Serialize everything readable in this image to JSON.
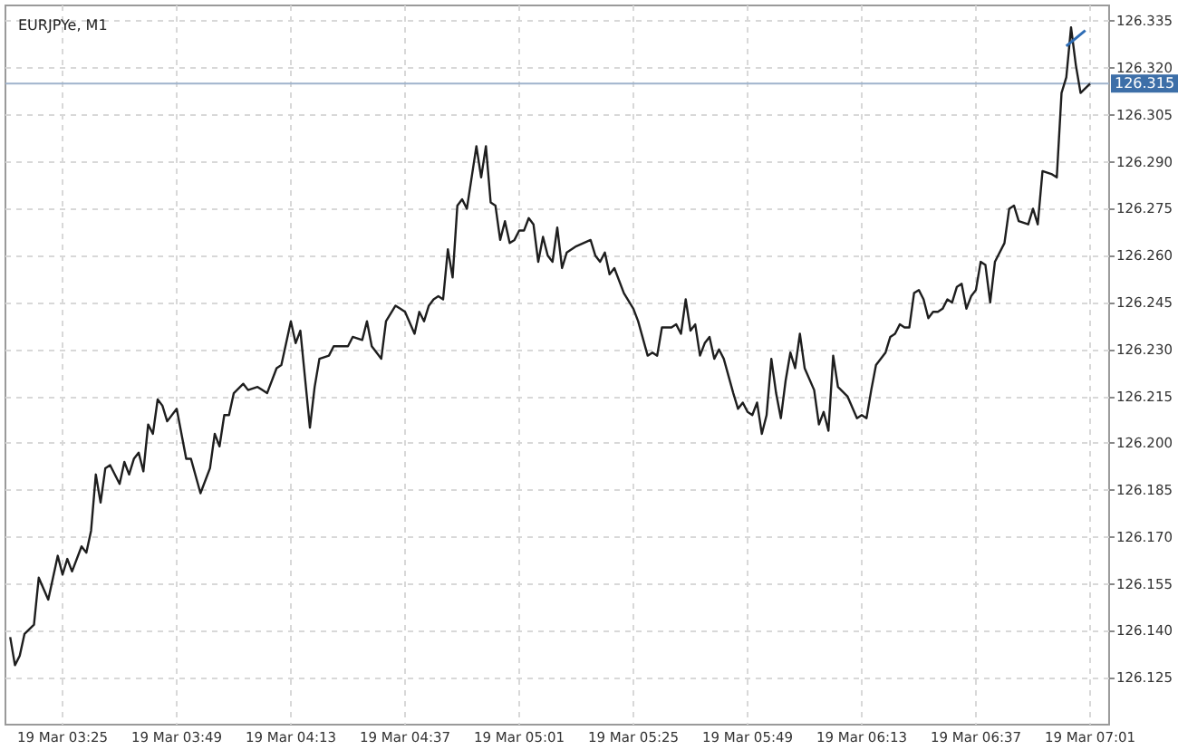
{
  "chart_data": {
    "type": "line",
    "title": "EURJPYe, M1",
    "xlim": [
      "--03-19T03:13",
      "--03-19T07:05"
    ],
    "xticks": [
      {
        "value": "--03-19T03:25",
        "label": "19 Mar 03:25"
      },
      {
        "value": "--03-19T03:49",
        "label": "19 Mar 03:49"
      },
      {
        "value": "--03-19T04:13",
        "label": "19 Mar 04:13"
      },
      {
        "value": "--03-19T04:37",
        "label": "19 Mar 04:37"
      },
      {
        "value": "--03-19T05:01",
        "label": "19 Mar 05:01"
      },
      {
        "value": "--03-19T05:25",
        "label": "19 Mar 05:25"
      },
      {
        "value": "--03-19T05:49",
        "label": "19 Mar 05:49"
      },
      {
        "value": "--03-19T06:13",
        "label": "19 Mar 06:13"
      },
      {
        "value": "--03-19T06:37",
        "label": "19 Mar 06:37"
      },
      {
        "value": "--03-19T07:01",
        "label": "19 Mar 07:01"
      }
    ],
    "ylim": [
      126.11,
      126.34
    ],
    "yticks": [
      126.125,
      {
        "value": 126.14,
        "label": "126.140"
      },
      126.155,
      {
        "value": 126.17,
        "label": "126.170"
      },
      126.185,
      {
        "value": 126.2,
        "label": "126.200"
      },
      126.215,
      {
        "value": 126.23,
        "label": "126.230"
      },
      126.245,
      {
        "value": 126.26,
        "label": "126.260"
      },
      126.275,
      {
        "value": 126.29,
        "label": "126.290"
      },
      126.305,
      {
        "value": 126.32,
        "label": "126.320"
      },
      126.335
    ],
    "grid": true,
    "marker": "none",
    "line_style": "solid",
    "ref_lines": [
      {
        "axis": "y",
        "value": 126.315,
        "label": "126.315",
        "color": "#9fb3cc"
      }
    ],
    "series": [
      {
        "color": "#1e1e1e",
        "x": [
          "--03-19T03:14",
          "--03-19T03:15",
          "--03-19T03:16",
          "--03-19T03:17",
          "--03-19T03:19",
          "--03-19T03:20",
          "--03-19T03:22",
          "--03-19T03:24",
          "--03-19T03:25",
          "--03-19T03:26",
          "--03-19T03:27",
          "--03-19T03:29",
          "--03-19T03:30",
          "--03-19T03:31",
          "--03-19T03:32",
          "--03-19T03:33",
          "--03-19T03:34",
          "--03-19T03:35",
          "--03-19T03:37",
          "--03-19T03:38",
          "--03-19T03:39",
          "--03-19T03:40",
          "--03-19T03:41",
          "--03-19T03:42",
          "--03-19T03:43",
          "--03-19T03:44",
          "--03-19T03:45",
          "--03-19T03:46",
          "--03-19T03:47",
          "--03-19T03:49",
          "--03-19T03:51",
          "--03-19T03:52",
          "--03-19T03:54",
          "--03-19T03:56",
          "--03-19T03:57",
          "--03-19T03:58",
          "--03-19T03:59",
          "--03-19T04:00",
          "--03-19T04:01",
          "--03-19T04:03",
          "--03-19T04:04",
          "--03-19T04:06",
          "--03-19T04:07",
          "--03-19T04:08",
          "--03-19T04:10",
          "--03-19T04:11",
          "--03-19T04:13",
          "--03-19T04:14",
          "--03-19T04:15",
          "--03-19T04:17",
          "--03-19T04:18",
          "--03-19T04:19",
          "--03-19T04:21",
          "--03-19T04:22",
          "--03-19T04:23",
          "--03-19T04:25",
          "--03-19T04:26",
          "--03-19T04:28",
          "--03-19T04:29",
          "--03-19T04:30",
          "--03-19T04:32",
          "--03-19T04:33",
          "--03-19T04:35",
          "--03-19T04:36",
          "--03-19T04:37",
          "--03-19T04:39",
          "--03-19T04:40",
          "--03-19T04:41",
          "--03-19T04:42",
          "--03-19T04:43",
          "--03-19T04:44",
          "--03-19T04:45",
          "--03-19T04:46",
          "--03-19T04:47",
          "--03-19T04:48",
          "--03-19T04:49",
          "--03-19T04:50",
          "--03-19T04:52",
          "--03-19T04:53",
          "--03-19T04:54",
          "--03-19T04:55",
          "--03-19T04:56",
          "--03-19T04:57",
          "--03-19T04:58",
          "--03-19T04:59",
          "--03-19T05:00",
          "--03-19T05:01",
          "--03-19T05:02",
          "--03-19T05:03",
          "--03-19T05:04",
          "--03-19T05:05",
          "--03-19T05:06",
          "--03-19T05:07",
          "--03-19T05:08",
          "--03-19T05:09",
          "--03-19T05:10",
          "--03-19T05:11",
          "--03-19T05:13",
          "--03-19T05:16",
          "--03-19T05:17",
          "--03-19T05:18",
          "--03-19T05:19",
          "--03-19T05:20",
          "--03-19T05:21",
          "--03-19T05:23",
          "--03-19T05:25",
          "--03-19T05:26",
          "--03-19T05:28",
          "--03-19T05:29",
          "--03-19T05:30",
          "--03-19T05:31",
          "--03-19T05:33",
          "--03-19T05:34",
          "--03-19T05:35",
          "--03-19T05:36",
          "--03-19T05:37",
          "--03-19T05:38",
          "--03-19T05:39",
          "--03-19T05:40",
          "--03-19T05:41",
          "--03-19T05:42",
          "--03-19T05:43",
          "--03-19T05:44",
          "--03-19T05:46",
          "--03-19T05:47",
          "--03-19T05:48",
          "--03-19T05:49",
          "--03-19T05:50",
          "--03-19T05:51",
          "--03-19T05:52",
          "--03-19T05:53",
          "--03-19T05:54",
          "--03-19T05:55",
          "--03-19T05:56",
          "--03-19T05:57",
          "--03-19T05:58",
          "--03-19T05:59",
          "--03-19T06:00",
          "--03-19T06:01",
          "--03-19T06:03",
          "--03-19T06:04",
          "--03-19T06:05",
          "--03-19T06:06",
          "--03-19T06:07",
          "--03-19T06:08",
          "--03-19T06:10",
          "--03-19T06:12",
          "--03-19T06:13",
          "--03-19T06:14",
          "--03-19T06:15",
          "--03-19T06:16",
          "--03-19T06:18",
          "--03-19T06:19",
          "--03-19T06:20",
          "--03-19T06:21",
          "--03-19T06:22",
          "--03-19T06:23",
          "--03-19T06:24",
          "--03-19T06:25",
          "--03-19T06:26",
          "--03-19T06:27",
          "--03-19T06:28",
          "--03-19T06:29",
          "--03-19T06:30",
          "--03-19T06:31",
          "--03-19T06:32",
          "--03-19T06:33",
          "--03-19T06:34",
          "--03-19T06:35",
          "--03-19T06:36",
          "--03-19T06:37",
          "--03-19T06:38",
          "--03-19T06:39",
          "--03-19T06:40",
          "--03-19T06:41",
          "--03-19T06:43",
          "--03-19T06:44",
          "--03-19T06:45",
          "--03-19T06:46",
          "--03-19T06:48",
          "--03-19T06:49",
          "--03-19T06:50",
          "--03-19T06:51",
          "--03-19T06:53",
          "--03-19T06:54",
          "--03-19T06:55",
          "--03-19T06:56",
          "--03-19T06:57",
          "--03-19T06:58",
          "--03-19T06:59",
          "--03-19T07:01"
        ],
        "values": [
          126.138,
          126.129,
          126.132,
          126.139,
          126.142,
          126.157,
          126.15,
          126.164,
          126.158,
          126.163,
          126.159,
          126.167,
          126.165,
          126.172,
          126.19,
          126.181,
          126.192,
          126.193,
          126.187,
          126.194,
          126.19,
          126.195,
          126.197,
          126.191,
          126.206,
          126.203,
          126.214,
          126.212,
          126.207,
          126.211,
          126.195,
          126.195,
          126.184,
          126.192,
          126.203,
          126.199,
          126.209,
          126.209,
          126.216,
          126.219,
          126.217,
          126.218,
          126.217,
          126.216,
          126.224,
          126.225,
          126.239,
          126.232,
          126.236,
          126.205,
          126.218,
          126.227,
          126.228,
          126.231,
          126.231,
          126.231,
          126.234,
          126.233,
          126.239,
          126.231,
          126.227,
          126.239,
          126.244,
          126.243,
          126.242,
          126.235,
          126.242,
          126.239,
          126.244,
          126.246,
          126.247,
          126.246,
          126.262,
          126.253,
          126.276,
          126.278,
          126.275,
          126.295,
          126.285,
          126.295,
          126.277,
          126.276,
          126.265,
          126.271,
          126.264,
          126.265,
          126.268,
          126.268,
          126.272,
          126.27,
          126.258,
          126.266,
          126.26,
          126.258,
          126.269,
          126.256,
          126.261,
          126.263,
          126.265,
          126.26,
          126.258,
          126.261,
          126.254,
          126.256,
          126.248,
          126.243,
          126.239,
          126.228,
          126.229,
          126.228,
          126.237,
          126.237,
          126.238,
          126.235,
          126.246,
          126.236,
          126.238,
          126.228,
          126.232,
          126.234,
          126.227,
          126.23,
          126.227,
          126.216,
          126.211,
          126.213,
          126.21,
          126.209,
          126.213,
          126.203,
          126.209,
          126.227,
          126.216,
          126.208,
          126.22,
          126.229,
          126.224,
          126.235,
          126.224,
          126.217,
          126.206,
          126.21,
          126.204,
          126.228,
          126.218,
          126.215,
          126.208,
          126.209,
          126.208,
          126.217,
          126.225,
          126.229,
          126.234,
          126.235,
          126.238,
          126.237,
          126.237,
          126.248,
          126.249,
          126.246,
          126.24,
          126.242,
          126.242,
          126.243,
          126.246,
          126.245,
          126.25,
          126.251,
          126.243,
          126.247,
          126.249,
          126.258,
          126.257,
          126.245,
          126.258,
          126.264,
          126.275,
          126.276,
          126.271,
          126.27,
          126.275,
          126.27,
          126.287,
          126.286,
          126.285,
          126.312,
          126.317,
          126.333,
          126.321,
          126.312,
          126.315
        ]
      },
      {
        "type": "line",
        "color": "#2f6db5",
        "x": [
          "--03-19T06:56",
          "--03-19T07:00"
        ],
        "values": [
          126.327,
          126.332
        ]
      }
    ]
  }
}
